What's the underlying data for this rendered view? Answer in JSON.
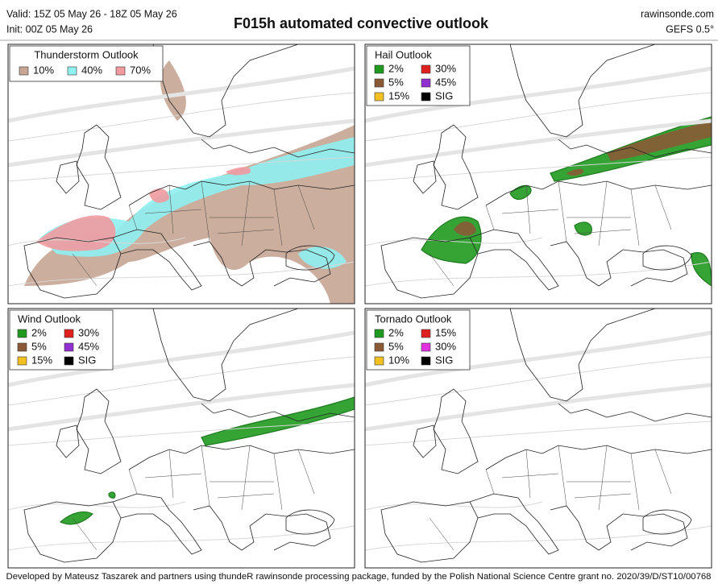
{
  "header": {
    "valid": "Valid: 15Z 05 May 26 - 18Z 05 May 26",
    "init": "Init: 00Z 05 May 26",
    "title": "F015h automated convective outlook",
    "source": "rawinsonde.com",
    "model": "GEFS 0.5°"
  },
  "panels": [
    {
      "title": "Thunderstorm Outlook",
      "legend": [
        {
          "label": "10%",
          "color": "#c7a593"
        },
        {
          "label": "40%",
          "color": "#8ff0f0"
        },
        {
          "label": "70%",
          "color": "#f19aa0"
        }
      ]
    },
    {
      "title": "Hail Outlook",
      "legend": [
        {
          "label": "2%",
          "color": "#1f9a1f"
        },
        {
          "label": "5%",
          "color": "#8a5a36"
        },
        {
          "label": "15%",
          "color": "#f2c020"
        },
        {
          "label": "30%",
          "color": "#e0201e"
        },
        {
          "label": "45%",
          "color": "#9030d0"
        },
        {
          "label": "SIG",
          "color": "#000000"
        }
      ]
    },
    {
      "title": "Wind Outlook",
      "legend": [
        {
          "label": "2%",
          "color": "#1f9a1f"
        },
        {
          "label": "5%",
          "color": "#8a5a36"
        },
        {
          "label": "15%",
          "color": "#f2c020"
        },
        {
          "label": "30%",
          "color": "#e0201e"
        },
        {
          "label": "45%",
          "color": "#9030d0"
        },
        {
          "label": "SIG",
          "color": "#000000"
        }
      ]
    },
    {
      "title": "Tornado Outlook",
      "legend": [
        {
          "label": "2%",
          "color": "#1f9a1f"
        },
        {
          "label": "5%",
          "color": "#8a5a36"
        },
        {
          "label": "10%",
          "color": "#f2c020"
        },
        {
          "label": "15%",
          "color": "#e0201e"
        },
        {
          "label": "30%",
          "color": "#e030e0"
        },
        {
          "label": "SIG",
          "color": "#000000"
        }
      ]
    }
  ],
  "footer": "Developed by Mateusz Taszarek and partners using thundeR rawinsonde processing package, funded by the Polish National Science Centre grant no. 2020/39/D/ST10/00768"
}
